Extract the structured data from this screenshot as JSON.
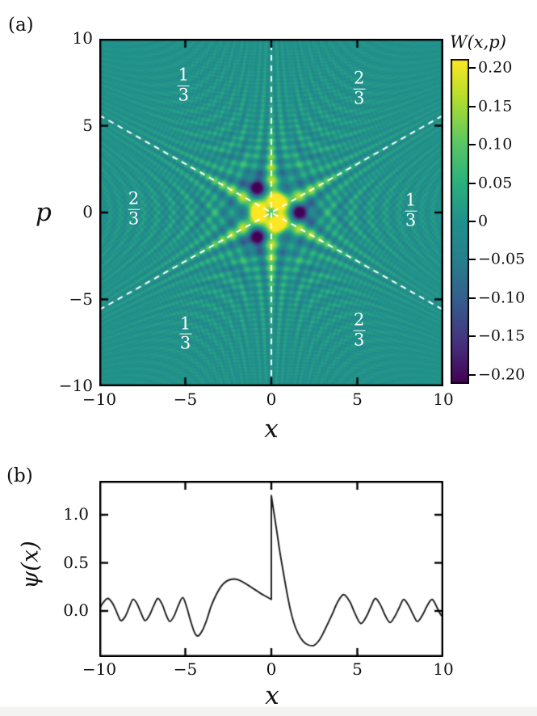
{
  "labels": {
    "panel_a": "(a)",
    "panel_b": "(b)",
    "x_axis_a": "x",
    "x_axis_b": "x",
    "p_axis": "p",
    "psi_axis": "ψ(x)",
    "colorbar_title": "W(x,p)"
  },
  "tick_labels": {
    "a_x": [
      "−10",
      "−5",
      "0",
      "5",
      "10"
    ],
    "a_p": [
      "10",
      "5",
      "0",
      "−5",
      "−10"
    ],
    "b_x": [
      "−10",
      "−5",
      "0",
      "5",
      "10"
    ],
    "b_y": [
      "1.0",
      "0.5",
      "0.0"
    ]
  },
  "colors": {
    "frame": "#000000",
    "curve": "#1a1a1a",
    "dashed_line": "#ffffff",
    "sector_text": "#ffffff",
    "viridis_stops": [
      "#440154",
      "#46327e",
      "#365c8d",
      "#277f8e",
      "#21918c",
      "#2db27d",
      "#5ec962",
      "#b0dd2f",
      "#fde725"
    ]
  },
  "chart_data": [
    {
      "id": "wigner_heatmap",
      "type": "heatmap",
      "title": "W(x,p)",
      "xlabel": "x",
      "ylabel": "p",
      "xlim": [
        -10,
        10
      ],
      "ylim": [
        -10,
        10
      ],
      "xticks": [
        -10,
        -5,
        0,
        5,
        10
      ],
      "yticks": [
        -10,
        -5,
        0,
        5,
        10
      ],
      "inner_ticks": [
        -5,
        0,
        5
      ],
      "colormap": "viridis",
      "clim": [
        -0.212,
        0.212
      ],
      "colorbar_ticks": [
        {
          "v": 0.2,
          "label": "0.20"
        },
        {
          "v": 0.15,
          "label": "0.15"
        },
        {
          "v": 0.1,
          "label": "0.10"
        },
        {
          "v": 0.05,
          "label": "0.05"
        },
        {
          "v": 0.0,
          "label": "0"
        },
        {
          "v": -0.05,
          "label": "−0.05"
        },
        {
          "v": -0.1,
          "label": "−0.10"
        },
        {
          "v": -0.15,
          "label": "−0.15"
        },
        {
          "v": -0.2,
          "label": "−0.20"
        }
      ],
      "dashed_lines": [
        {
          "x1": 0,
          "p1": -10,
          "x2": 0,
          "p2": 10
        },
        {
          "x1": -10,
          "p1": -5.6,
          "x2": 10,
          "p2": 5.6
        },
        {
          "x1": -10,
          "p1": 5.6,
          "x2": 10,
          "p2": -5.6
        }
      ],
      "sector_labels": [
        {
          "num": "1",
          "den": "3",
          "x": -5.1,
          "p": 7.3
        },
        {
          "num": "2",
          "den": "3",
          "x": 5.1,
          "p": 7.1
        },
        {
          "num": "2",
          "den": "3",
          "x": -8.0,
          "p": 0.2
        },
        {
          "num": "1",
          "den": "3",
          "x": 8.1,
          "p": 0.1
        },
        {
          "num": "1",
          "den": "3",
          "x": -5.0,
          "p": -7.0
        },
        {
          "num": "2",
          "den": "3",
          "x": 5.1,
          "p": -6.8
        }
      ],
      "model": {
        "line_slope": 0.56,
        "fringe_k": 2.4,
        "fringe_amp": 0.055,
        "fringe_decay_fast": 4,
        "fringe_decay_slow": 11,
        "ridge_amp": 0.075,
        "ridge_width2": 0.16,
        "ridge_r_peak": 2,
        "ridge_r_width2": 6,
        "core_suppress": 0.85,
        "core_width2": 0.3,
        "pos_blobs": {
          "r": 0.8,
          "angles_deg": [
            60,
            180,
            300
          ],
          "amp": 0.25,
          "width2": 0.22
        },
        "neg_blobs": {
          "r": 1.6,
          "angles_deg": [
            0,
            120,
            240
          ],
          "amp": -0.2,
          "width2": 0.36
        }
      }
    },
    {
      "id": "psi_line",
      "type": "line",
      "xlabel": "x",
      "ylabel": "ψ(x)",
      "xlim": [
        -10,
        10
      ],
      "ylim": [
        -0.47,
        1.35
      ],
      "xticks": [
        -10,
        -5,
        0,
        5,
        10
      ],
      "yticks": [
        0.0,
        0.5,
        1.0
      ],
      "inner_xticks": [
        -5,
        0,
        5
      ],
      "discontinuity_x": 0,
      "segments": [
        [
          [
            -10,
            0.02
          ],
          [
            -9.8,
            0.08
          ],
          [
            -9.5,
            0.13
          ],
          [
            -9.2,
            0.07
          ],
          [
            -8.95,
            -0.03
          ],
          [
            -8.75,
            -0.1
          ],
          [
            -8.5,
            -0.06
          ],
          [
            -8.28,
            0.03
          ],
          [
            -8.05,
            0.12
          ],
          [
            -7.82,
            0.08
          ],
          [
            -7.6,
            -0.01
          ],
          [
            -7.35,
            -0.1
          ],
          [
            -7.1,
            -0.05
          ],
          [
            -6.85,
            0.05
          ],
          [
            -6.6,
            0.13
          ],
          [
            -6.35,
            0.07
          ],
          [
            -6.12,
            -0.04
          ],
          [
            -5.9,
            -0.11
          ],
          [
            -5.65,
            -0.05
          ],
          [
            -5.4,
            0.06
          ],
          [
            -5.15,
            0.14
          ],
          [
            -4.92,
            0.04
          ],
          [
            -4.7,
            -0.1
          ],
          [
            -4.45,
            -0.23
          ],
          [
            -4.25,
            -0.26
          ],
          [
            -4.0,
            -0.2
          ],
          [
            -3.75,
            -0.09
          ],
          [
            -3.5,
            0.05
          ],
          [
            -3.2,
            0.17
          ],
          [
            -2.9,
            0.26
          ],
          [
            -2.6,
            0.31
          ],
          [
            -2.3,
            0.33
          ],
          [
            -2.05,
            0.33
          ],
          [
            -1.8,
            0.315
          ],
          [
            -1.5,
            0.285
          ],
          [
            -1.2,
            0.25
          ],
          [
            -0.9,
            0.215
          ],
          [
            -0.6,
            0.18
          ],
          [
            -0.3,
            0.15
          ],
          [
            0,
            0.12
          ]
        ],
        [
          [
            0,
            1.2
          ],
          [
            0.12,
            1.06
          ],
          [
            0.3,
            0.85
          ],
          [
            0.5,
            0.61
          ],
          [
            0.72,
            0.38
          ],
          [
            0.95,
            0.15
          ],
          [
            1.15,
            -0.02
          ],
          [
            1.4,
            -0.17
          ],
          [
            1.7,
            -0.28
          ],
          [
            2.0,
            -0.34
          ],
          [
            2.45,
            -0.36
          ],
          [
            2.8,
            -0.3
          ],
          [
            3.1,
            -0.2
          ],
          [
            3.5,
            -0.05
          ],
          [
            3.85,
            0.09
          ],
          [
            4.2,
            0.17
          ],
          [
            4.55,
            0.1
          ],
          [
            4.85,
            -0.02
          ],
          [
            5.2,
            -0.13
          ],
          [
            5.55,
            -0.05
          ],
          [
            5.8,
            0.05
          ],
          [
            6.05,
            0.13
          ],
          [
            6.35,
            0.06
          ],
          [
            6.6,
            -0.04
          ],
          [
            6.9,
            -0.12
          ],
          [
            7.2,
            -0.05
          ],
          [
            7.45,
            0.04
          ],
          [
            7.7,
            0.12
          ],
          [
            8.0,
            0.05
          ],
          [
            8.25,
            -0.04
          ],
          [
            8.5,
            -0.11
          ],
          [
            8.8,
            -0.04
          ],
          [
            9.05,
            0.05
          ],
          [
            9.35,
            0.12
          ],
          [
            9.65,
            0.03
          ],
          [
            9.85,
            -0.04
          ],
          [
            10,
            -0.06
          ]
        ]
      ]
    }
  ]
}
